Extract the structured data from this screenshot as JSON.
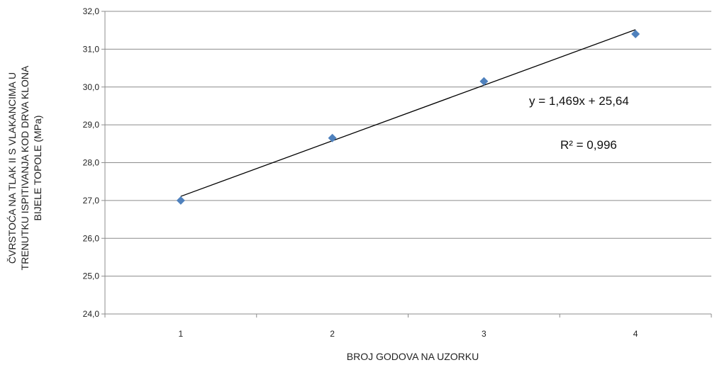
{
  "chart_data": {
    "type": "scatter",
    "x": [
      1,
      2,
      3,
      4
    ],
    "y": [
      27.0,
      28.65,
      30.15,
      31.4
    ],
    "xlabel": "BROJ GODOVA NA UZORKU",
    "ylabel_lines": [
      "ČVRSTOĆA NA TLAK II S VLAKANCIMA U",
      "TRENUTKU ISPITIVANJA KOD DRVA KLONA",
      "BIJELE TOPOLE  (MPa)"
    ],
    "ylim": [
      24.0,
      32.0
    ],
    "yticks": [
      "24,0",
      "25,0",
      "26,0",
      "27,0",
      "28,0",
      "29,0",
      "30,0",
      "31,0",
      "32,0"
    ],
    "xticks": [
      "1",
      "2",
      "3",
      "4"
    ],
    "grid": "horizontal",
    "marker": "diamond",
    "marker_color": "#4f81bd",
    "trendline": {
      "slope": 1.469,
      "intercept": 25.64,
      "color": "#000000"
    },
    "annotations": {
      "equation": "y = 1,469x + 25,64",
      "r2": "R² = 0,996"
    }
  }
}
